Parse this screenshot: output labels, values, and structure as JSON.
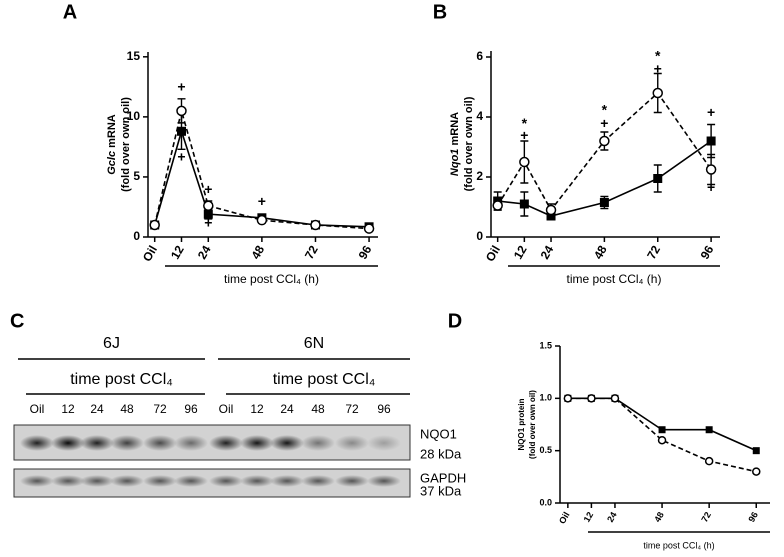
{
  "chart_data": [
    {
      "type": "line",
      "label": "A",
      "ylabel_italic": "Gclc",
      "ylabel": "mRNA",
      "ylabel2": "(fold over own oil)",
      "xlabel": "time post CCl₄ (h)",
      "x": [
        0,
        12,
        24,
        48,
        72,
        96
      ],
      "xticks": [
        {
          "value": 0,
          "label": "Oil"
        },
        12,
        24,
        48,
        72,
        96
      ],
      "xlim": [
        -3,
        100
      ],
      "ylim": [
        0,
        15.4
      ],
      "yticks": [
        0,
        5,
        10,
        15
      ],
      "series": [
        {
          "color": "#000000",
          "line": "solid",
          "marker": "square",
          "values": [
            1.0,
            8.8,
            1.9,
            1.6,
            1.0,
            0.85
          ],
          "errors": [
            0.15,
            1.5,
            0.4,
            0.3,
            0.15,
            0.15
          ]
        },
        {
          "color": "#000000",
          "line": "dashed",
          "marker": "circle",
          "values": [
            1.0,
            10.5,
            2.6,
            1.4,
            1.0,
            0.7
          ],
          "errors": [
            0.15,
            1.0,
            0.4,
            0.2,
            0.15,
            0.15
          ]
        }
      ],
      "annotations": [
        {
          "text": "+",
          "x": 12,
          "y": 12.4
        },
        {
          "text": "+",
          "x": 12,
          "y": 6.6
        },
        {
          "text": "+",
          "x": 24,
          "y": 3.9
        },
        {
          "text": "+",
          "x": 24,
          "y": 1.1
        },
        {
          "text": "+",
          "x": 48,
          "y": 2.9
        }
      ]
    },
    {
      "type": "line",
      "label": "B",
      "ylabel_italic": "Nqo1",
      "ylabel": "mRNA",
      "ylabel2": "(fold over own oil)",
      "xlabel": "time post CCl₄ (h)",
      "x": [
        0,
        12,
        24,
        48,
        72,
        96
      ],
      "xticks": [
        {
          "value": 0,
          "label": "Oil"
        },
        12,
        24,
        48,
        72,
        96
      ],
      "xlim": [
        -3,
        100
      ],
      "ylim": [
        0,
        6.2
      ],
      "yticks": [
        0,
        2,
        4,
        6
      ],
      "series": [
        {
          "color": "#000000",
          "line": "solid",
          "marker": "square",
          "values": [
            1.2,
            1.1,
            0.7,
            1.15,
            1.95,
            3.2
          ],
          "errors": [
            0.3,
            0.4,
            0.1,
            0.2,
            0.45,
            0.55
          ]
        },
        {
          "color": "#000000",
          "line": "dashed",
          "marker": "circle",
          "values": [
            1.05,
            2.5,
            0.9,
            3.2,
            4.8,
            2.25
          ],
          "errors": [
            0.15,
            0.7,
            0.2,
            0.3,
            0.65,
            0.5
          ]
        }
      ],
      "annotations": [
        {
          "text": "*",
          "x": 12,
          "y": 3.75
        },
        {
          "text": "+",
          "x": 12,
          "y": 3.35
        },
        {
          "text": "*",
          "x": 48,
          "y": 4.2
        },
        {
          "text": "+",
          "x": 48,
          "y": 3.75
        },
        {
          "text": "*",
          "x": 72,
          "y": 6.0
        },
        {
          "text": "+",
          "x": 72,
          "y": 5.57
        },
        {
          "text": "+",
          "x": 96,
          "y": 4.13
        },
        {
          "text": "+",
          "x": 96,
          "y": 1.63
        }
      ]
    },
    {
      "type": "line",
      "label": "D",
      "ylabel": "NQO1 protein",
      "ylabel2": "(fold over own oil)",
      "xlabel": "time post CCl₄ (h)",
      "x": [
        0,
        12,
        24,
        48,
        72,
        96
      ],
      "xticks": [
        {
          "value": 0,
          "label": "Oil"
        },
        12,
        24,
        48,
        72,
        96
      ],
      "xlim": [
        -4,
        103
      ],
      "ylim": [
        0,
        1.5
      ],
      "yticks": [
        {
          "value": 0,
          "label": "0.0"
        },
        0.5,
        {
          "value": 1,
          "label": "1.0"
        },
        1.5
      ],
      "series": [
        {
          "color": "#000000",
          "line": "solid",
          "marker": "square",
          "values": [
            1.0,
            1.0,
            1.0,
            0.7,
            0.7,
            0.5
          ]
        },
        {
          "color": "#000000",
          "line": "dashed",
          "marker": "circle",
          "values": [
            1.0,
            1.0,
            1.0,
            0.6,
            0.4,
            0.3
          ]
        }
      ]
    }
  ],
  "blot": {
    "label": "C",
    "groups": [
      {
        "name": "6J",
        "subtitle": "time post CCl₄",
        "lanes": [
          "Oil",
          "12",
          "24",
          "48",
          "72",
          "96"
        ]
      },
      {
        "name": "6N",
        "subtitle": "time post CCl₄",
        "lanes": [
          "Oil",
          "12",
          "24",
          "48",
          "72",
          "96"
        ]
      }
    ],
    "rows": [
      {
        "protein": "NQO1",
        "size": "28 kDa"
      },
      {
        "protein": "GAPDH",
        "size": "37 kDa"
      }
    ]
  }
}
